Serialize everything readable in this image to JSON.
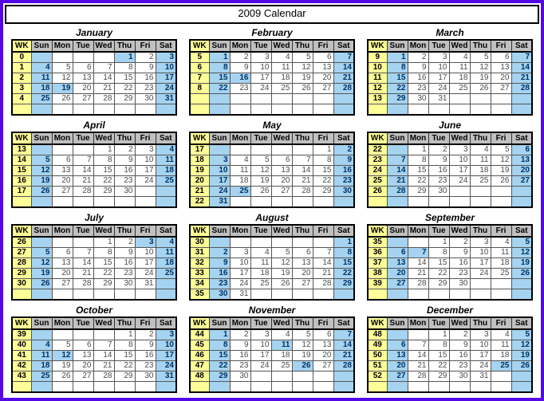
{
  "title": "2009 Calendar",
  "colors": {
    "frame": "#5408e8",
    "week_column_bg": "#ffff99",
    "weekend_bg": "#a5d3f0",
    "header_bg": "#c0c0c0",
    "holiday_text": "#003366"
  },
  "day_headers": [
    "WK",
    "Sun",
    "Mon",
    "Tue",
    "Wed",
    "Thu",
    "Fri",
    "Sat"
  ],
  "months": [
    {
      "name": "January",
      "highlights": [
        "1",
        "19"
      ],
      "weeks": [
        {
          "wk": "0",
          "days": [
            "",
            "",
            "",
            "",
            "1",
            "2",
            "3"
          ]
        },
        {
          "wk": "1",
          "days": [
            "4",
            "5",
            "6",
            "7",
            "8",
            "9",
            "10"
          ]
        },
        {
          "wk": "2",
          "days": [
            "11",
            "12",
            "13",
            "14",
            "15",
            "16",
            "17"
          ]
        },
        {
          "wk": "3",
          "days": [
            "18",
            "19",
            "20",
            "21",
            "22",
            "23",
            "24"
          ]
        },
        {
          "wk": "4",
          "days": [
            "25",
            "26",
            "27",
            "28",
            "29",
            "30",
            "31"
          ]
        },
        {
          "wk": "",
          "days": [
            "",
            "",
            "",
            "",
            "",
            "",
            ""
          ]
        }
      ]
    },
    {
      "name": "February",
      "highlights": [
        "16"
      ],
      "weeks": [
        {
          "wk": "5",
          "days": [
            "1",
            "2",
            "3",
            "4",
            "5",
            "6",
            "7"
          ]
        },
        {
          "wk": "6",
          "days": [
            "8",
            "9",
            "10",
            "11",
            "12",
            "13",
            "14"
          ]
        },
        {
          "wk": "7",
          "days": [
            "15",
            "16",
            "17",
            "18",
            "19",
            "20",
            "21"
          ]
        },
        {
          "wk": "8",
          "days": [
            "22",
            "23",
            "24",
            "25",
            "26",
            "27",
            "28"
          ]
        },
        {
          "wk": "",
          "days": [
            "",
            "",
            "",
            "",
            "",
            "",
            ""
          ]
        },
        {
          "wk": "",
          "days": [
            "",
            "",
            "",
            "",
            "",
            "",
            ""
          ]
        }
      ]
    },
    {
      "name": "March",
      "highlights": [],
      "weeks": [
        {
          "wk": "9",
          "days": [
            "1",
            "2",
            "3",
            "4",
            "5",
            "6",
            "7"
          ]
        },
        {
          "wk": "10",
          "days": [
            "8",
            "9",
            "10",
            "11",
            "12",
            "13",
            "14"
          ]
        },
        {
          "wk": "11",
          "days": [
            "15",
            "16",
            "17",
            "18",
            "19",
            "20",
            "21"
          ]
        },
        {
          "wk": "12",
          "days": [
            "22",
            "23",
            "24",
            "25",
            "26",
            "27",
            "28"
          ]
        },
        {
          "wk": "13",
          "days": [
            "29",
            "30",
            "31",
            "",
            "",
            "",
            ""
          ]
        },
        {
          "wk": "",
          "days": [
            "",
            "",
            "",
            "",
            "",
            "",
            ""
          ]
        }
      ]
    },
    {
      "name": "April",
      "highlights": [],
      "weeks": [
        {
          "wk": "13",
          "days": [
            "",
            "",
            "",
            "1",
            "2",
            "3",
            "4"
          ]
        },
        {
          "wk": "14",
          "days": [
            "5",
            "6",
            "7",
            "8",
            "9",
            "10",
            "11"
          ]
        },
        {
          "wk": "15",
          "days": [
            "12",
            "13",
            "14",
            "15",
            "16",
            "17",
            "18"
          ]
        },
        {
          "wk": "16",
          "days": [
            "19",
            "20",
            "21",
            "22",
            "23",
            "24",
            "25"
          ]
        },
        {
          "wk": "17",
          "days": [
            "26",
            "27",
            "28",
            "29",
            "30",
            "",
            ""
          ]
        },
        {
          "wk": "",
          "days": [
            "",
            "",
            "",
            "",
            "",
            "",
            ""
          ]
        }
      ]
    },
    {
      "name": "May",
      "highlights": [
        "25"
      ],
      "weeks": [
        {
          "wk": "17",
          "days": [
            "",
            "",
            "",
            "",
            "",
            "1",
            "2"
          ]
        },
        {
          "wk": "18",
          "days": [
            "3",
            "4",
            "5",
            "6",
            "7",
            "8",
            "9"
          ]
        },
        {
          "wk": "19",
          "days": [
            "10",
            "11",
            "12",
            "13",
            "14",
            "15",
            "16"
          ]
        },
        {
          "wk": "20",
          "days": [
            "17",
            "18",
            "19",
            "20",
            "21",
            "22",
            "23"
          ]
        },
        {
          "wk": "21",
          "days": [
            "24",
            "25",
            "26",
            "27",
            "28",
            "29",
            "30"
          ]
        },
        {
          "wk": "22",
          "days": [
            "31",
            "",
            "",
            "",
            "",
            "",
            ""
          ]
        }
      ]
    },
    {
      "name": "June",
      "highlights": [],
      "weeks": [
        {
          "wk": "22",
          "days": [
            "",
            "1",
            "2",
            "3",
            "4",
            "5",
            "6"
          ]
        },
        {
          "wk": "23",
          "days": [
            "7",
            "8",
            "9",
            "10",
            "11",
            "12",
            "13"
          ]
        },
        {
          "wk": "24",
          "days": [
            "14",
            "15",
            "16",
            "17",
            "18",
            "19",
            "20"
          ]
        },
        {
          "wk": "25",
          "days": [
            "21",
            "22",
            "23",
            "24",
            "25",
            "26",
            "27"
          ]
        },
        {
          "wk": "26",
          "days": [
            "28",
            "29",
            "30",
            "",
            "",
            "",
            ""
          ]
        },
        {
          "wk": "",
          "days": [
            "",
            "",
            "",
            "",
            "",
            "",
            ""
          ]
        }
      ]
    },
    {
      "name": "July",
      "highlights": [
        "3"
      ],
      "weeks": [
        {
          "wk": "26",
          "days": [
            "",
            "",
            "",
            "1",
            "2",
            "3",
            "4"
          ]
        },
        {
          "wk": "27",
          "days": [
            "5",
            "6",
            "7",
            "8",
            "9",
            "10",
            "11"
          ]
        },
        {
          "wk": "28",
          "days": [
            "12",
            "13",
            "14",
            "15",
            "16",
            "17",
            "18"
          ]
        },
        {
          "wk": "29",
          "days": [
            "19",
            "20",
            "21",
            "22",
            "23",
            "24",
            "25"
          ]
        },
        {
          "wk": "30",
          "days": [
            "26",
            "27",
            "28",
            "29",
            "30",
            "31",
            ""
          ]
        },
        {
          "wk": "",
          "days": [
            "",
            "",
            "",
            "",
            "",
            "",
            ""
          ]
        }
      ]
    },
    {
      "name": "August",
      "highlights": [],
      "weeks": [
        {
          "wk": "30",
          "days": [
            "",
            "",
            "",
            "",
            "",
            "",
            "1"
          ]
        },
        {
          "wk": "31",
          "days": [
            "2",
            "3",
            "4",
            "5",
            "6",
            "7",
            "8"
          ]
        },
        {
          "wk": "32",
          "days": [
            "9",
            "10",
            "11",
            "12",
            "13",
            "14",
            "15"
          ]
        },
        {
          "wk": "33",
          "days": [
            "16",
            "17",
            "18",
            "19",
            "20",
            "21",
            "22"
          ]
        },
        {
          "wk": "34",
          "days": [
            "23",
            "24",
            "25",
            "26",
            "27",
            "28",
            "29"
          ]
        },
        {
          "wk": "35",
          "days": [
            "30",
            "31",
            "",
            "",
            "",
            "",
            ""
          ]
        }
      ]
    },
    {
      "name": "September",
      "highlights": [
        "7"
      ],
      "weeks": [
        {
          "wk": "35",
          "days": [
            "",
            "",
            "1",
            "2",
            "3",
            "4",
            "5"
          ]
        },
        {
          "wk": "36",
          "days": [
            "6",
            "7",
            "8",
            "9",
            "10",
            "11",
            "12"
          ]
        },
        {
          "wk": "37",
          "days": [
            "13",
            "14",
            "15",
            "16",
            "17",
            "18",
            "19"
          ]
        },
        {
          "wk": "38",
          "days": [
            "20",
            "21",
            "22",
            "23",
            "24",
            "25",
            "26"
          ]
        },
        {
          "wk": "39",
          "days": [
            "27",
            "28",
            "29",
            "30",
            "",
            "",
            ""
          ]
        },
        {
          "wk": "",
          "days": [
            "",
            "",
            "",
            "",
            "",
            "",
            ""
          ]
        }
      ]
    },
    {
      "name": "October",
      "highlights": [
        "12"
      ],
      "weeks": [
        {
          "wk": "39",
          "days": [
            "",
            "",
            "",
            "",
            "1",
            "2",
            "3"
          ]
        },
        {
          "wk": "40",
          "days": [
            "4",
            "5",
            "6",
            "7",
            "8",
            "9",
            "10"
          ]
        },
        {
          "wk": "41",
          "days": [
            "11",
            "12",
            "13",
            "14",
            "15",
            "16",
            "17"
          ]
        },
        {
          "wk": "42",
          "days": [
            "18",
            "19",
            "20",
            "21",
            "22",
            "23",
            "24"
          ]
        },
        {
          "wk": "43",
          "days": [
            "25",
            "26",
            "27",
            "28",
            "29",
            "30",
            "31"
          ]
        },
        {
          "wk": "",
          "days": [
            "",
            "",
            "",
            "",
            "",
            "",
            ""
          ]
        }
      ]
    },
    {
      "name": "November",
      "highlights": [
        "11",
        "26"
      ],
      "weeks": [
        {
          "wk": "44",
          "days": [
            "1",
            "2",
            "3",
            "4",
            "5",
            "6",
            "7"
          ]
        },
        {
          "wk": "45",
          "days": [
            "8",
            "9",
            "10",
            "11",
            "12",
            "13",
            "14"
          ]
        },
        {
          "wk": "46",
          "days": [
            "15",
            "16",
            "17",
            "18",
            "19",
            "20",
            "21"
          ]
        },
        {
          "wk": "47",
          "days": [
            "22",
            "23",
            "24",
            "25",
            "26",
            "27",
            "28"
          ]
        },
        {
          "wk": "48",
          "days": [
            "29",
            "30",
            "",
            "",
            "",
            "",
            ""
          ]
        },
        {
          "wk": "",
          "days": [
            "",
            "",
            "",
            "",
            "",
            "",
            ""
          ]
        }
      ]
    },
    {
      "name": "December",
      "highlights": [
        "25"
      ],
      "weeks": [
        {
          "wk": "48",
          "days": [
            "",
            "",
            "1",
            "2",
            "3",
            "4",
            "5"
          ]
        },
        {
          "wk": "49",
          "days": [
            "6",
            "7",
            "8",
            "9",
            "10",
            "11",
            "12"
          ]
        },
        {
          "wk": "50",
          "days": [
            "13",
            "14",
            "15",
            "16",
            "17",
            "18",
            "19"
          ]
        },
        {
          "wk": "51",
          "days": [
            "20",
            "21",
            "22",
            "23",
            "24",
            "25",
            "26"
          ]
        },
        {
          "wk": "52",
          "days": [
            "27",
            "28",
            "29",
            "30",
            "31",
            "",
            ""
          ]
        },
        {
          "wk": "",
          "days": [
            "",
            "",
            "",
            "",
            "",
            "",
            ""
          ]
        }
      ]
    }
  ]
}
